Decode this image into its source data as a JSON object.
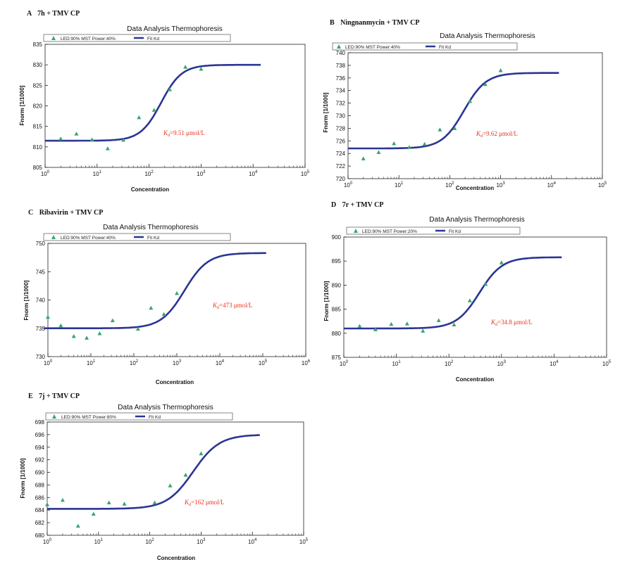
{
  "colors": {
    "curve": "#2b3594",
    "point": "#3aa56b",
    "kd": "#e8331c",
    "axis": "#222222"
  },
  "chart_data": [
    {
      "type": "scatter",
      "panel_label": "A",
      "sample": "7h + TMV CP",
      "title": "Data Analysis Thermophoresis",
      "xlabel": "Concentration",
      "ylabel": "Fnorm [1/1000]",
      "x_scale": "log",
      "xlim_exp": [
        0,
        5
      ],
      "ylim": [
        805,
        835
      ],
      "yticks": [
        805,
        810,
        815,
        820,
        825,
        830,
        835
      ],
      "legend": {
        "points": "LED:90% MST Power:40%",
        "fit": "Fit Kd"
      },
      "kd_text": "=9.51 μmol/L",
      "fit": {
        "lower": 811.5,
        "upper": 830,
        "ec50": 170,
        "hill": 2.2,
        "x_range": [
          1,
          14000
        ]
      },
      "points": [
        {
          "x": 2,
          "y": 812
        },
        {
          "x": 4,
          "y": 813.2
        },
        {
          "x": 8,
          "y": 811.8
        },
        {
          "x": 16,
          "y": 809.6
        },
        {
          "x": 32,
          "y": 811.7
        },
        {
          "x": 64,
          "y": 817.2
        },
        {
          "x": 125,
          "y": 819
        },
        {
          "x": 250,
          "y": 824
        },
        {
          "x": 500,
          "y": 829.5
        },
        {
          "x": 1000,
          "y": 829
        }
      ]
    },
    {
      "type": "scatter",
      "panel_label": "B",
      "sample": "Ningnanmycin + TMV CP",
      "title": "Data Analysis Thermophoresis",
      "xlabel": "Concentration",
      "ylabel": "Fnorm [1/1000]",
      "x_scale": "log",
      "xlim_exp": [
        0,
        5
      ],
      "ylim": [
        720,
        740
      ],
      "yticks": [
        720,
        722,
        724,
        726,
        728,
        730,
        732,
        734,
        736,
        738,
        740
      ],
      "legend": {
        "points": "LED:90% MST Power:40%",
        "fit": "Fit Kd"
      },
      "kd_text": "=9.62 μmol/L",
      "fit": {
        "lower": 724.8,
        "upper": 736.8,
        "ec50": 190,
        "hill": 2.0,
        "x_range": [
          1,
          14000
        ]
      },
      "points": [
        {
          "x": 2,
          "y": 723.2
        },
        {
          "x": 4,
          "y": 724.2
        },
        {
          "x": 8,
          "y": 725.6
        },
        {
          "x": 16,
          "y": 725
        },
        {
          "x": 32,
          "y": 725.5
        },
        {
          "x": 64,
          "y": 727.8
        },
        {
          "x": 125,
          "y": 728
        },
        {
          "x": 250,
          "y": 732.3
        },
        {
          "x": 500,
          "y": 735
        },
        {
          "x": 1000,
          "y": 737.2
        }
      ]
    },
    {
      "type": "scatter",
      "panel_label": "C",
      "sample": "Ribavirin + TMV CP",
      "title": "Data Analysis Thermophoresis",
      "xlabel": "Concentration",
      "ylabel": "Fnorm [1/1000]",
      "x_scale": "log",
      "xlim_exp": [
        0,
        6
      ],
      "ylim": [
        730,
        750
      ],
      "yticks": [
        730,
        735,
        740,
        745,
        750
      ],
      "legend": {
        "points": "LED:90% MST Power:40%",
        "fit": "Fit Kd"
      },
      "kd_text": "=473 μmol/L",
      "fit": {
        "lower": 735,
        "upper": 748.3,
        "ec50": 1500,
        "hill": 1.6,
        "x_range": [
          0.8,
          120000
        ]
      },
      "points": [
        {
          "x": 1,
          "y": 737
        },
        {
          "x": 2,
          "y": 735.5
        },
        {
          "x": 4,
          "y": 733.6
        },
        {
          "x": 8,
          "y": 733.3
        },
        {
          "x": 16,
          "y": 734.1
        },
        {
          "x": 32,
          "y": 736.4
        },
        {
          "x": 125,
          "y": 734.9
        },
        {
          "x": 250,
          "y": 738.6
        },
        {
          "x": 500,
          "y": 737.5
        },
        {
          "x": 1000,
          "y": 741.2
        }
      ]
    },
    {
      "type": "scatter",
      "panel_label": "D",
      "sample": "7r + TMV CP",
      "title": "Data Analysis Thermophoresis",
      "xlabel": "Concentration",
      "ylabel": "Fnorm [1/1000]",
      "x_scale": "log",
      "xlim_exp": [
        0,
        5
      ],
      "ylim": [
        875,
        900
      ],
      "yticks": [
        875,
        880,
        885,
        890,
        895,
        900
      ],
      "legend": {
        "points": "LED:90% MST Power:20%",
        "fit": "Fit Kd"
      },
      "kd_text": "=34.8 μmol/L",
      "fit": {
        "lower": 881,
        "upper": 895.8,
        "ec50": 380,
        "hill": 2.0,
        "x_range": [
          1,
          14000
        ]
      },
      "points": [
        {
          "x": 2,
          "y": 881.5
        },
        {
          "x": 4,
          "y": 880.8
        },
        {
          "x": 8,
          "y": 881.9
        },
        {
          "x": 16,
          "y": 882
        },
        {
          "x": 32,
          "y": 880.5
        },
        {
          "x": 64,
          "y": 882.7
        },
        {
          "x": 125,
          "y": 881.8
        },
        {
          "x": 250,
          "y": 886.8
        },
        {
          "x": 500,
          "y": 890.2
        },
        {
          "x": 1000,
          "y": 894.7
        }
      ]
    },
    {
      "type": "scatter",
      "panel_label": "E",
      "sample": "7j + TMV CP",
      "title": "Data Analysis Thermophoresis",
      "xlabel": "Concentration",
      "ylabel": "Fnorm [1/1000]",
      "x_scale": "log",
      "xlim_exp": [
        0,
        5
      ],
      "ylim": [
        680,
        698
      ],
      "yticks": [
        680,
        682,
        684,
        686,
        688,
        690,
        692,
        694,
        696,
        698
      ],
      "legend": {
        "points": "LED:90% MST Power:80%",
        "fit": "Fit Kd"
      },
      "kd_text": "=162 μmol/L",
      "fit": {
        "lower": 684.2,
        "upper": 696,
        "ec50": 700,
        "hill": 1.7,
        "x_range": [
          1,
          14000
        ]
      },
      "points": [
        {
          "x": 1,
          "y": 684.9
        },
        {
          "x": 2,
          "y": 685.6
        },
        {
          "x": 4,
          "y": 681.5
        },
        {
          "x": 8,
          "y": 683.4
        },
        {
          "x": 16,
          "y": 685.2
        },
        {
          "x": 32,
          "y": 685
        },
        {
          "x": 125,
          "y": 685.2
        },
        {
          "x": 250,
          "y": 687.9
        },
        {
          "x": 500,
          "y": 689.6
        },
        {
          "x": 1000,
          "y": 693
        }
      ]
    }
  ]
}
